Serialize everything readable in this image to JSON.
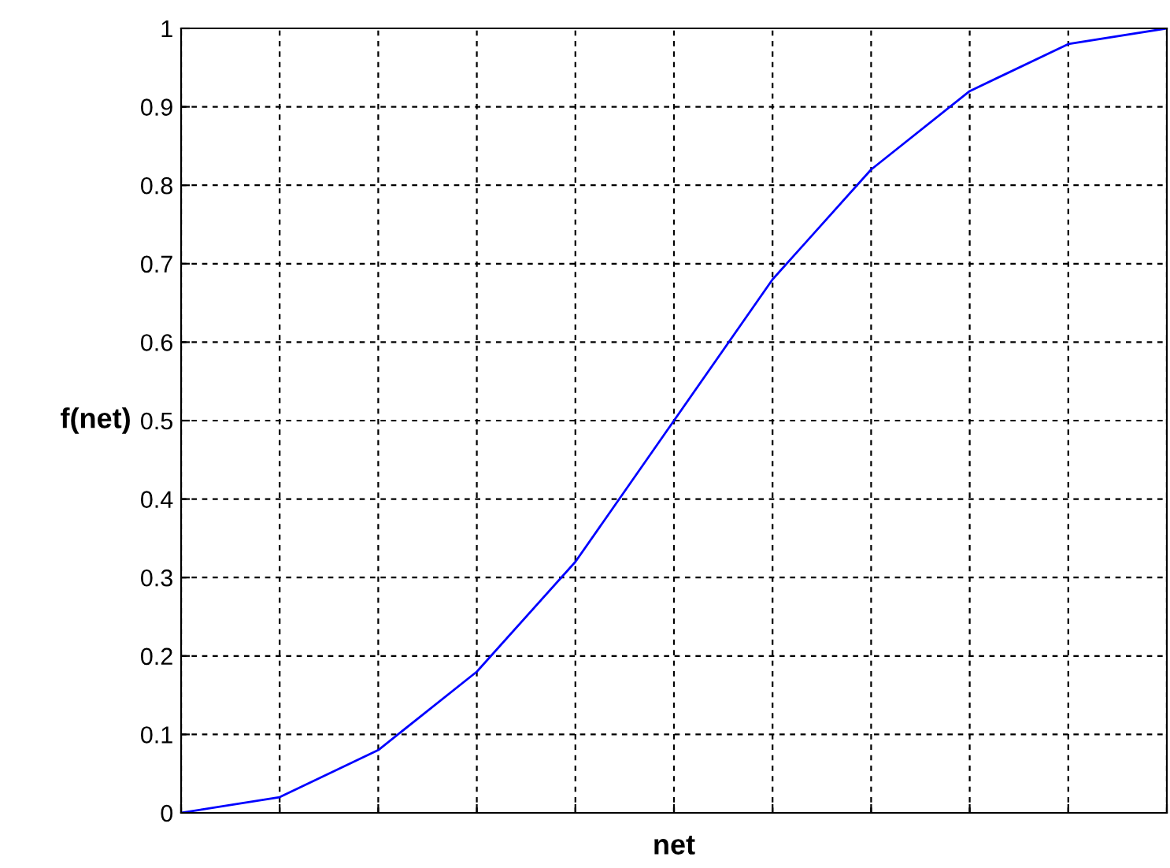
{
  "chart_data": {
    "type": "line",
    "xlabel": "net",
    "ylabel": "f(net)",
    "categories": [
      null,
      null,
      null,
      null,
      null,
      null,
      null,
      null,
      null,
      null,
      null
    ],
    "series": [
      {
        "color": "#0000ff",
        "values": [
          0,
          0.02,
          0.08,
          0.18,
          0.32,
          0.5,
          0.68,
          0.82,
          0.92,
          0.98,
          1
        ]
      }
    ],
    "ylim": [
      0,
      1
    ],
    "yticks": [
      0,
      0.1,
      0.2,
      0.3,
      0.4,
      0.5,
      0.6,
      0.7,
      0.8,
      0.9,
      1
    ],
    "grid": true,
    "line_style": "solid",
    "marker": "none"
  }
}
